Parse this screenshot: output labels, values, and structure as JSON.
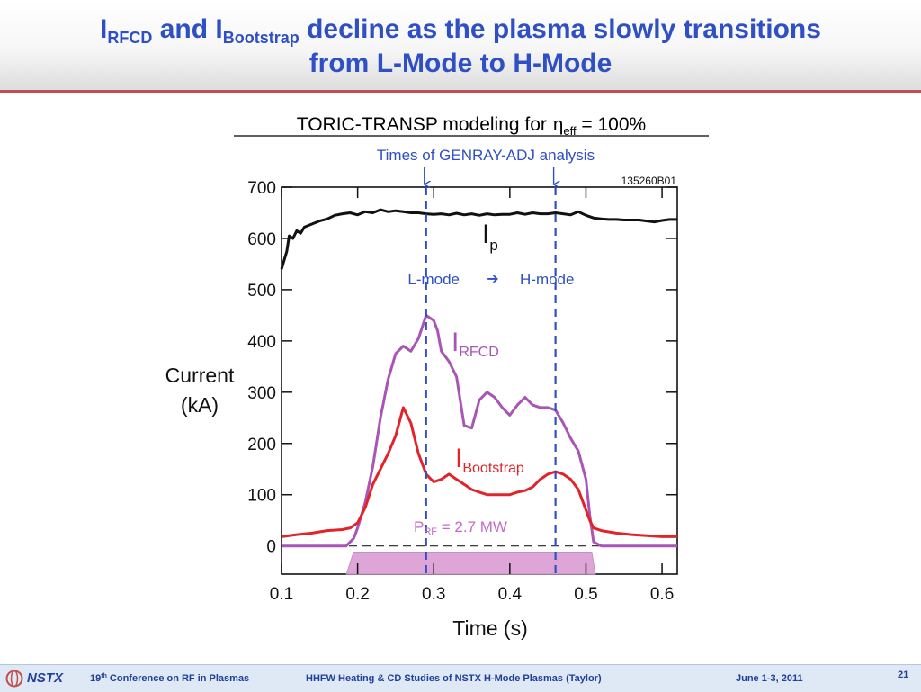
{
  "slide": {
    "title_i1": "I",
    "title_sub1": "RFCD",
    "title_and": " and ",
    "title_i2": "I",
    "title_sub2": "Bootstrap",
    "title_line1_rest": " decline as the plasma slowly transitions",
    "title_line2": "from L-Mode to H-Mode",
    "accent_color": "#2f4fc4",
    "rule_color": "#c0504d"
  },
  "footer": {
    "logo_text": "NSTX",
    "conf_num": "19",
    "conf_sup": "th",
    "conf_rest": " Conference on RF in Plasmas",
    "talk": "HHFW Heating & CD Studies of NSTX H-Mode Plasmas (Taylor)",
    "date": "June 1-3, 2011",
    "page": "21"
  },
  "chart_data": {
    "type": "line",
    "title_prefix": "TORIC-TRANSP modeling for ",
    "title_eta": "η",
    "title_eff": "eff",
    "title_suffix": " = 100%",
    "subtitle": "Times of GENRAY-ADJ analysis",
    "shot_label": "135260B01",
    "xlabel": "Time (s)",
    "ylabel_line1": "Current",
    "ylabel_line2": "(kA)",
    "xlim": [
      0.1,
      0.62
    ],
    "ylim": [
      -55,
      700
    ],
    "x_ticks": [
      "0.1",
      "0.2",
      "0.3",
      "0.4",
      "0.5",
      "0.6"
    ],
    "y_ticks": [
      "0",
      "100",
      "200",
      "300",
      "400",
      "500",
      "600",
      "700"
    ],
    "grid": false,
    "analysis_times": [
      0.29,
      0.46
    ],
    "mode_left": "L-mode",
    "mode_arrow": "➔",
    "mode_right": "H-mode",
    "prf_label_p": "P",
    "prf_label_sub": "RF",
    "prf_label_rest": " = 2.7 MW",
    "prf_window": [
      0.19,
      0.51
    ],
    "series": [
      {
        "name": "I",
        "label_sub": "p",
        "color": "#111111",
        "x": [
          0.1,
          0.103,
          0.107,
          0.11,
          0.115,
          0.12,
          0.125,
          0.13,
          0.14,
          0.15,
          0.16,
          0.17,
          0.18,
          0.19,
          0.2,
          0.21,
          0.22,
          0.23,
          0.24,
          0.25,
          0.26,
          0.27,
          0.28,
          0.29,
          0.3,
          0.31,
          0.32,
          0.33,
          0.34,
          0.35,
          0.36,
          0.37,
          0.38,
          0.39,
          0.4,
          0.41,
          0.42,
          0.43,
          0.44,
          0.45,
          0.46,
          0.47,
          0.48,
          0.49,
          0.5,
          0.51,
          0.52,
          0.53,
          0.54,
          0.55,
          0.56,
          0.57,
          0.58,
          0.59,
          0.6,
          0.61,
          0.62
        ],
        "y": [
          540,
          555,
          575,
          605,
          600,
          615,
          610,
          622,
          628,
          634,
          638,
          645,
          648,
          650,
          646,
          652,
          650,
          656,
          652,
          654,
          652,
          650,
          650,
          648,
          647,
          648,
          646,
          649,
          646,
          648,
          645,
          648,
          646,
          647,
          647,
          650,
          647,
          650,
          648,
          648,
          650,
          648,
          646,
          652,
          645,
          640,
          638,
          637,
          637,
          636,
          636,
          636,
          634,
          632,
          635,
          637,
          637
        ]
      },
      {
        "name": "I",
        "label_sub": "RFCD",
        "color": "#a855b5",
        "x": [
          0.1,
          0.15,
          0.185,
          0.195,
          0.2,
          0.21,
          0.22,
          0.23,
          0.24,
          0.25,
          0.26,
          0.27,
          0.28,
          0.29,
          0.3,
          0.305,
          0.31,
          0.32,
          0.33,
          0.34,
          0.35,
          0.36,
          0.37,
          0.38,
          0.39,
          0.4,
          0.41,
          0.42,
          0.43,
          0.44,
          0.45,
          0.46,
          0.47,
          0.48,
          0.49,
          0.5,
          0.505,
          0.51,
          0.52,
          0.62
        ],
        "y": [
          0,
          0,
          0,
          15,
          35,
          85,
          155,
          250,
          325,
          375,
          390,
          380,
          405,
          450,
          440,
          420,
          380,
          360,
          330,
          235,
          230,
          285,
          300,
          290,
          270,
          255,
          275,
          290,
          275,
          270,
          270,
          265,
          240,
          210,
          185,
          130,
          60,
          8,
          0,
          0
        ]
      },
      {
        "name": "I",
        "label_sub": "Bootstrap",
        "color": "#e0242a",
        "x": [
          0.1,
          0.12,
          0.14,
          0.16,
          0.18,
          0.19,
          0.2,
          0.21,
          0.22,
          0.23,
          0.24,
          0.25,
          0.26,
          0.27,
          0.28,
          0.29,
          0.3,
          0.31,
          0.32,
          0.33,
          0.34,
          0.35,
          0.36,
          0.37,
          0.38,
          0.39,
          0.4,
          0.41,
          0.42,
          0.43,
          0.44,
          0.45,
          0.46,
          0.47,
          0.48,
          0.49,
          0.5,
          0.505,
          0.51,
          0.52,
          0.54,
          0.56,
          0.58,
          0.6,
          0.62
        ],
        "y": [
          18,
          22,
          25,
          30,
          32,
          35,
          45,
          75,
          120,
          150,
          180,
          215,
          270,
          240,
          180,
          140,
          125,
          130,
          140,
          130,
          120,
          110,
          105,
          100,
          100,
          100,
          100,
          105,
          108,
          115,
          130,
          140,
          145,
          140,
          130,
          110,
          70,
          50,
          35,
          30,
          25,
          22,
          20,
          18,
          18
        ]
      }
    ],
    "zero_line_style": "dashed"
  }
}
